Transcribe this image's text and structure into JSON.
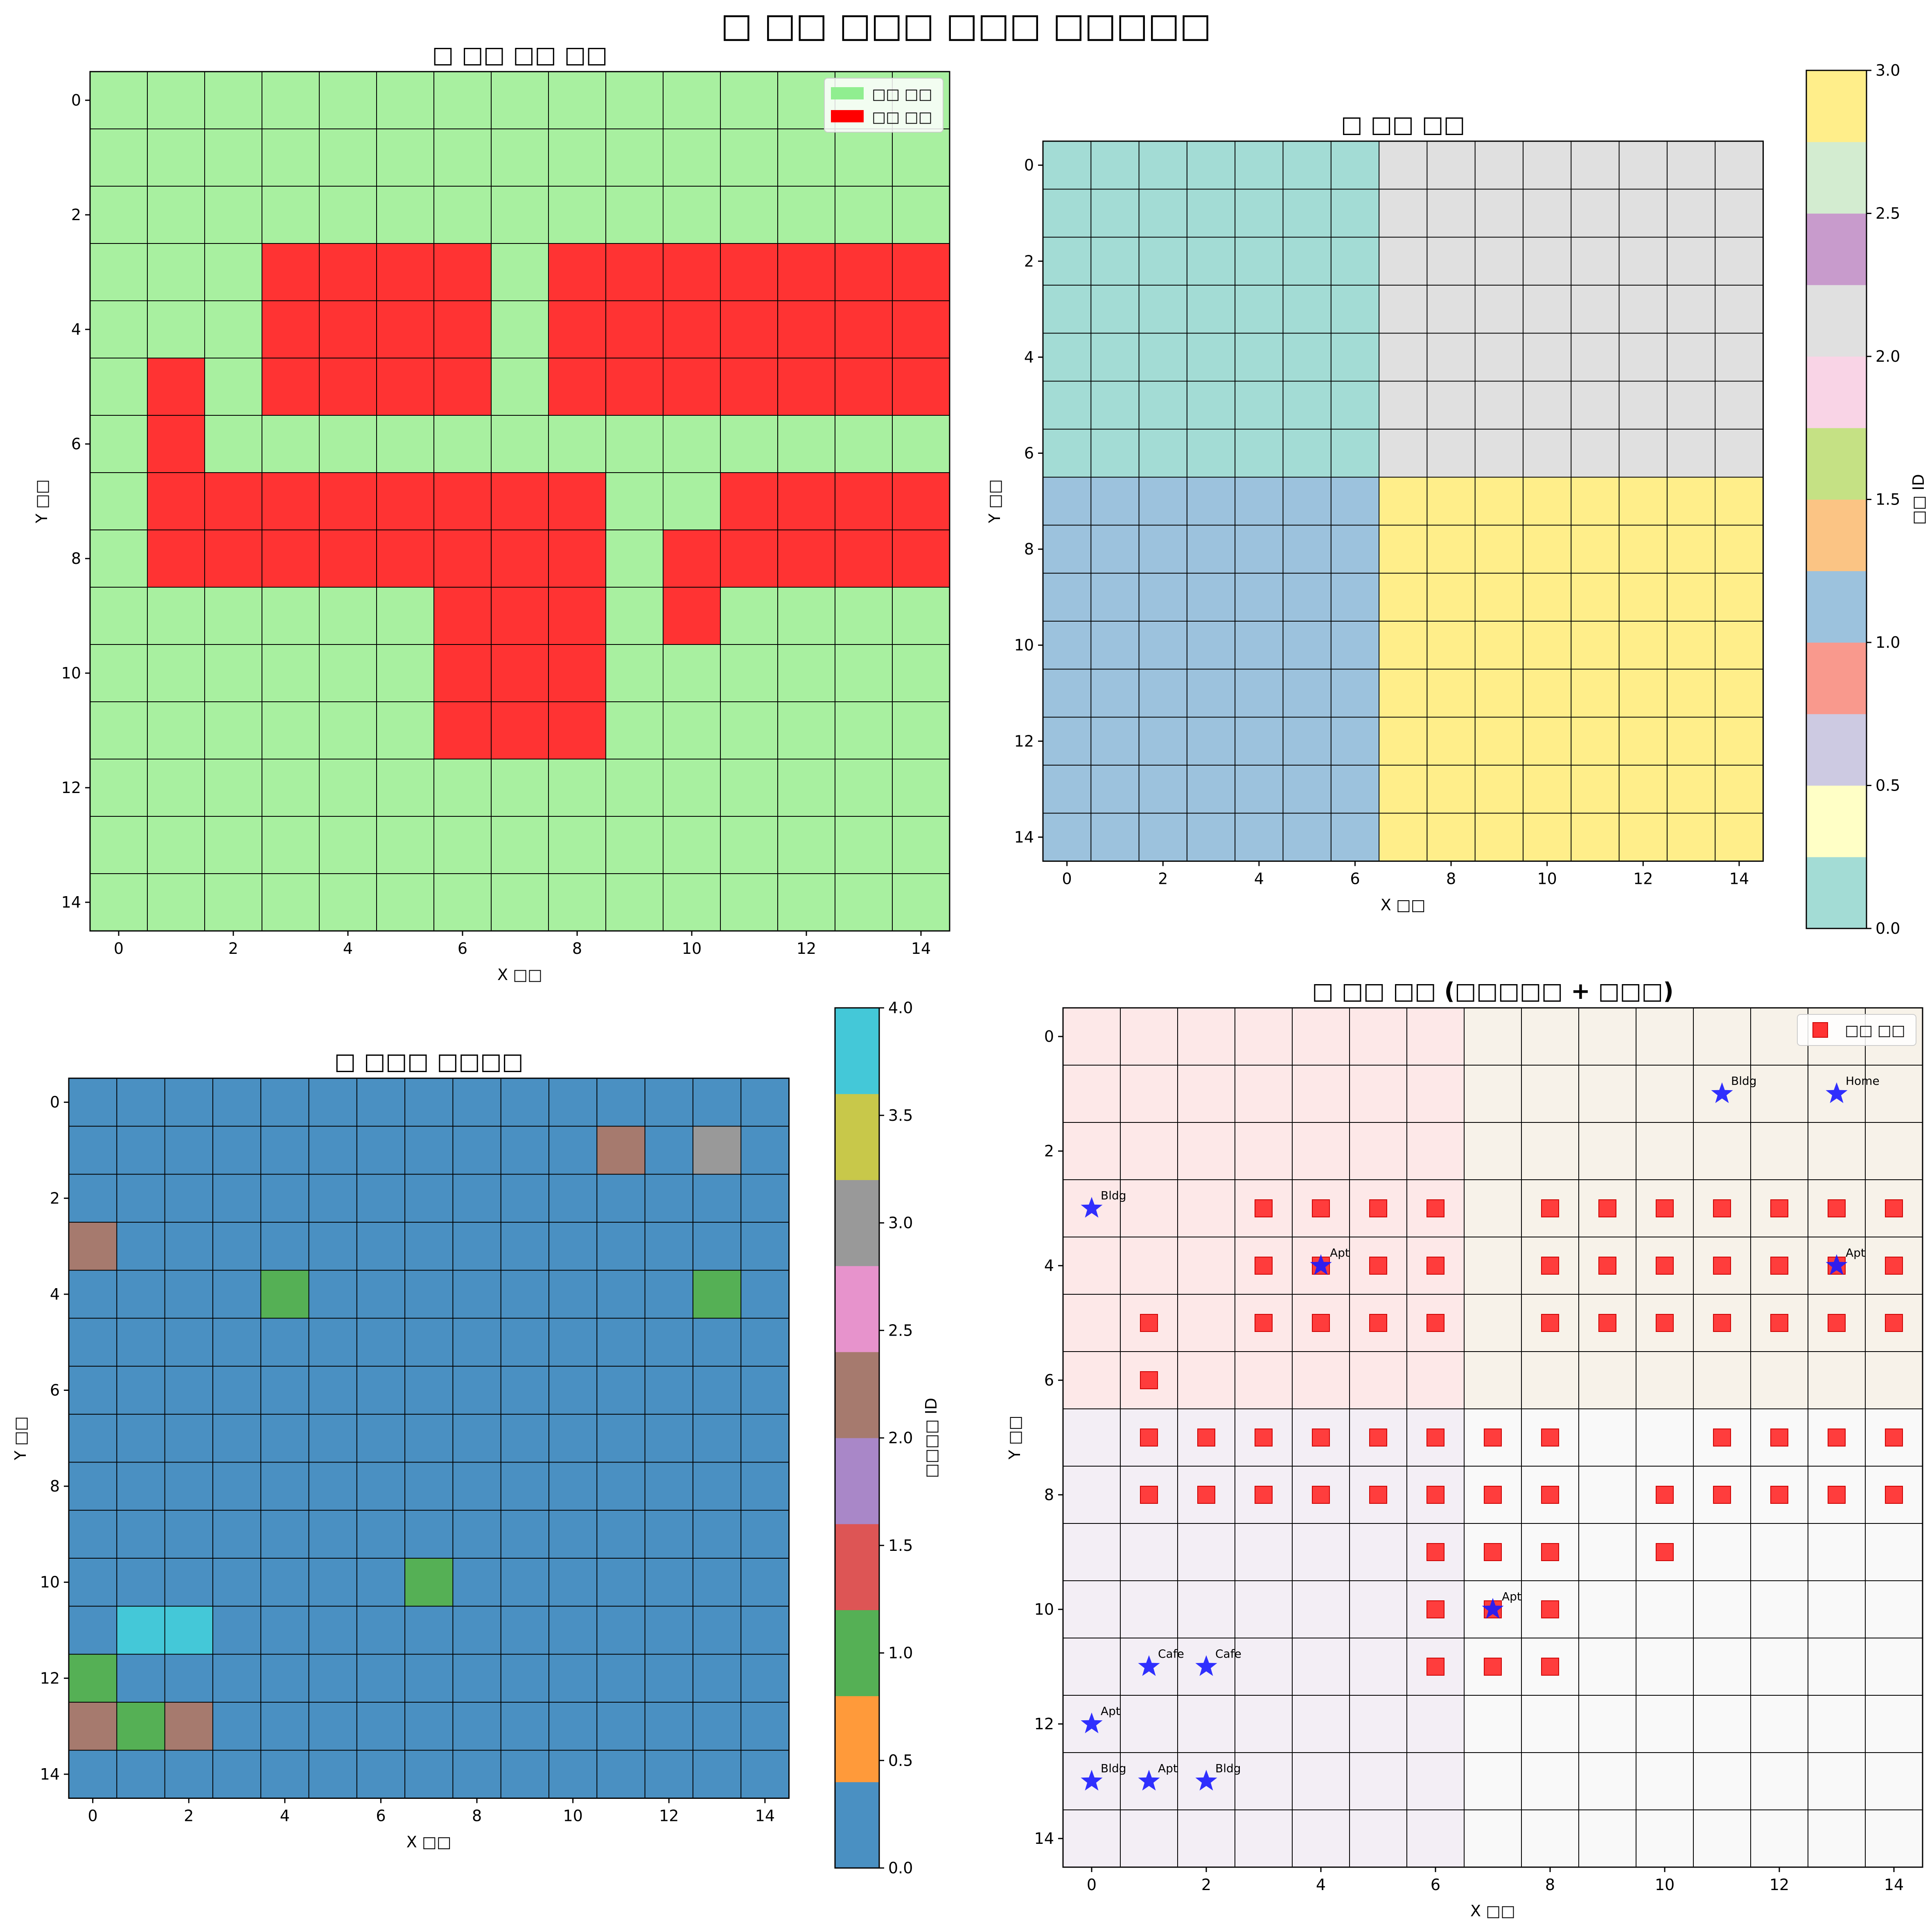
{
  "figure": {
    "title": "□ □□ □□□ □□□ □□□□□"
  },
  "colors": {
    "road": "#ff3333",
    "empty": "#a8f0a0",
    "region0": "#a3dcd5",
    "region1": "#9cc2dd",
    "region2": "#e0e0e0",
    "region3": "#ffee8a",
    "bldg_blue": "#4a90c2",
    "bldg_green": "#55b055",
    "bldg_brown": "#a67a6e",
    "bldg_gray": "#999999",
    "bldg_cyan": "#44c8d8",
    "star": "#1a1aff",
    "grid": "#000000"
  },
  "chart_data": [
    {
      "type": "heatmap",
      "title": "□ □□ □□ □□",
      "xlabel": "X □□",
      "ylabel": "Y □□",
      "xticks": [
        0,
        2,
        4,
        6,
        8,
        10,
        12,
        14
      ],
      "yticks": [
        0,
        2,
        4,
        6,
        8,
        10,
        12,
        14
      ],
      "legend": {
        "position": "top-right",
        "entries": [
          {
            "label": "□□ □□",
            "color": "#90ee90"
          },
          {
            "label": "□□ □□",
            "color": "#ff0000"
          }
        ]
      },
      "grid_values": [
        "000000000000000",
        "000000000000000",
        "000000000000000",
        "000111101111111",
        "000111101111111",
        "010111101111111",
        "010000000000000",
        "011111111001111",
        "011111111011111",
        "000000111010000",
        "000000111000000",
        "000000111000000",
        "000000000000000",
        "000000000000000",
        "000000000000000"
      ]
    },
    {
      "type": "heatmap",
      "title": "□ □□ □□",
      "xlabel": "X □□",
      "ylabel": "Y □□",
      "xticks": [
        0,
        2,
        4,
        6,
        8,
        10,
        12,
        14
      ],
      "yticks": [
        0,
        2,
        4,
        6,
        8,
        10,
        12,
        14
      ],
      "regions": [
        {
          "id": 0,
          "x_range": [
            0,
            6
          ],
          "y_range": [
            0,
            6
          ]
        },
        {
          "id": 2,
          "x_range": [
            7,
            14
          ],
          "y_range": [
            0,
            6
          ]
        },
        {
          "id": 1,
          "x_range": [
            0,
            6
          ],
          "y_range": [
            7,
            14
          ]
        },
        {
          "id": 3,
          "x_range": [
            7,
            14
          ],
          "y_range": [
            7,
            14
          ]
        }
      ],
      "colorbar": {
        "label": "□□ ID",
        "range": [
          0.0,
          3.0
        ],
        "ticks": [
          "0.0",
          "0.5",
          "1.0",
          "1.5",
          "2.0",
          "2.5",
          "3.0"
        ],
        "band_colors": [
          "#a3dcd5",
          "#ffffc6",
          "#cdcae2",
          "#f9998d",
          "#9cc2dd",
          "#fbc484",
          "#c5e184",
          "#f9d4e6",
          "#e0e0e0",
          "#c89bcc",
          "#d3ecd0",
          "#ffee8a"
        ]
      }
    },
    {
      "type": "heatmap",
      "title": "□ □□□ □□□□",
      "xlabel": "X □□",
      "ylabel": "Y □□",
      "xticks": [
        0,
        2,
        4,
        6,
        8,
        10,
        12,
        14
      ],
      "yticks": [
        0,
        2,
        4,
        6,
        8,
        10,
        12,
        14
      ],
      "buildings": [
        {
          "x": 11,
          "y": 1,
          "id": 2
        },
        {
          "x": 13,
          "y": 1,
          "id": 3
        },
        {
          "x": 0,
          "y": 3,
          "id": 2
        },
        {
          "x": 4,
          "y": 4,
          "id": 1
        },
        {
          "x": 13,
          "y": 4,
          "id": 1
        },
        {
          "x": 7,
          "y": 10,
          "id": 1
        },
        {
          "x": 1,
          "y": 11,
          "id": 4
        },
        {
          "x": 2,
          "y": 11,
          "id": 4
        },
        {
          "x": 0,
          "y": 12,
          "id": 1
        },
        {
          "x": 0,
          "y": 13,
          "id": 2
        },
        {
          "x": 1,
          "y": 13,
          "id": 1
        },
        {
          "x": 2,
          "y": 13,
          "id": 2
        }
      ],
      "colorbar": {
        "label": "□□□□ ID",
        "range": [
          0.0,
          4.0
        ],
        "ticks": [
          "0.0",
          "0.5",
          "1.0",
          "1.5",
          "2.0",
          "2.5",
          "3.0",
          "3.5",
          "4.0"
        ],
        "band_colors": [
          "#4a90c2",
          "#ff9a3a",
          "#55b055",
          "#dd5555",
          "#a987c8",
          "#a67a6e",
          "#e793cc",
          "#999999",
          "#c8c84a",
          "#44c8d8"
        ]
      }
    },
    {
      "type": "scatter",
      "title": "□ □□ □□ (□□□□□ + □□□)",
      "xlabel": "X □□",
      "ylabel": "Y □□",
      "xticks": [
        0,
        2,
        4,
        6,
        8,
        10,
        12,
        14
      ],
      "yticks": [
        0,
        2,
        4,
        6,
        8,
        10,
        12,
        14
      ],
      "legend": {
        "position": "top-right",
        "entries": [
          {
            "label": "□□ □□",
            "marker": "square",
            "color": "#ff3333"
          }
        ]
      },
      "points": [
        {
          "x": 11,
          "y": 1,
          "label": "Bldg"
        },
        {
          "x": 13,
          "y": 1,
          "label": "Home"
        },
        {
          "x": 0,
          "y": 3,
          "label": "Bldg"
        },
        {
          "x": 4,
          "y": 4,
          "label": "Apt"
        },
        {
          "x": 13,
          "y": 4,
          "label": "Apt"
        },
        {
          "x": 7,
          "y": 10,
          "label": "Apt"
        },
        {
          "x": 1,
          "y": 11,
          "label": "Cafe"
        },
        {
          "x": 2,
          "y": 11,
          "label": "Cafe"
        },
        {
          "x": 0,
          "y": 12,
          "label": "Apt"
        },
        {
          "x": 0,
          "y": 13,
          "label": "Bldg"
        },
        {
          "x": 1,
          "y": 13,
          "label": "Apt"
        },
        {
          "x": 2,
          "y": 13,
          "label": "Bldg"
        }
      ]
    }
  ]
}
